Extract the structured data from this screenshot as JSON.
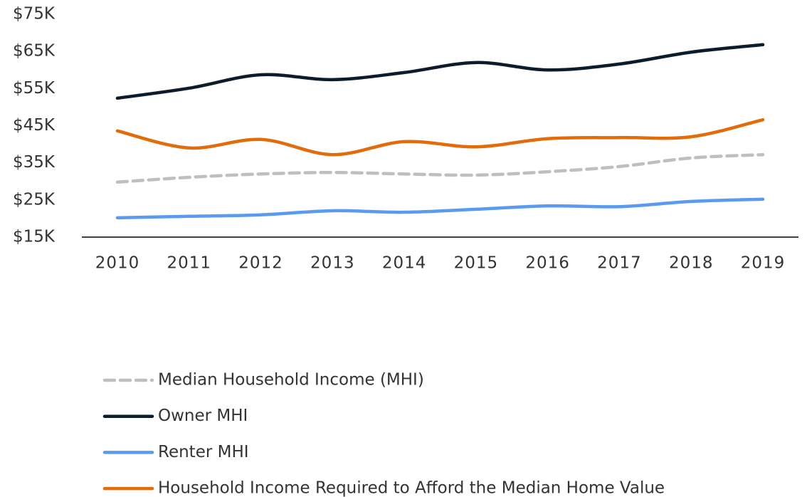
{
  "chart_data": {
    "type": "line",
    "categories": [
      "2010",
      "2011",
      "2012",
      "2013",
      "2014",
      "2015",
      "2016",
      "2017",
      "2018",
      "2019"
    ],
    "series": [
      {
        "name": "Median Household Income (MHI)",
        "color": "#bfbfbf",
        "dash": true,
        "values": [
          29800,
          31100,
          32000,
          32400,
          32000,
          31700,
          32600,
          34000,
          36300,
          37200
        ]
      },
      {
        "name": "Owner MHI",
        "color": "#0d1b2a",
        "values": [
          52400,
          55100,
          58700,
          57400,
          59300,
          62000,
          60000,
          61600,
          64800,
          66800
        ]
      },
      {
        "name": "Renter MHI",
        "color": "#5b9bef",
        "values": [
          20200,
          20600,
          21000,
          22100,
          21700,
          22500,
          23400,
          23200,
          24600,
          25200
        ]
      },
      {
        "name": "Household Income Required to Afford the Median Home Value",
        "color": "#e36c0a",
        "values": [
          43600,
          39000,
          41300,
          37200,
          40700,
          39300,
          41500,
          41800,
          42000,
          46600
        ]
      }
    ],
    "ylim": [
      15000,
      75000
    ],
    "yticks": [
      {
        "value": 15000,
        "label": "$15K"
      },
      {
        "value": 25000,
        "label": "$25K"
      },
      {
        "value": 35000,
        "label": "$35K"
      },
      {
        "value": 45000,
        "label": "$45K"
      },
      {
        "value": 55000,
        "label": "$55K"
      },
      {
        "value": 65000,
        "label": "$65K"
      },
      {
        "value": 75000,
        "label": "$75K"
      }
    ],
    "grid": false
  }
}
